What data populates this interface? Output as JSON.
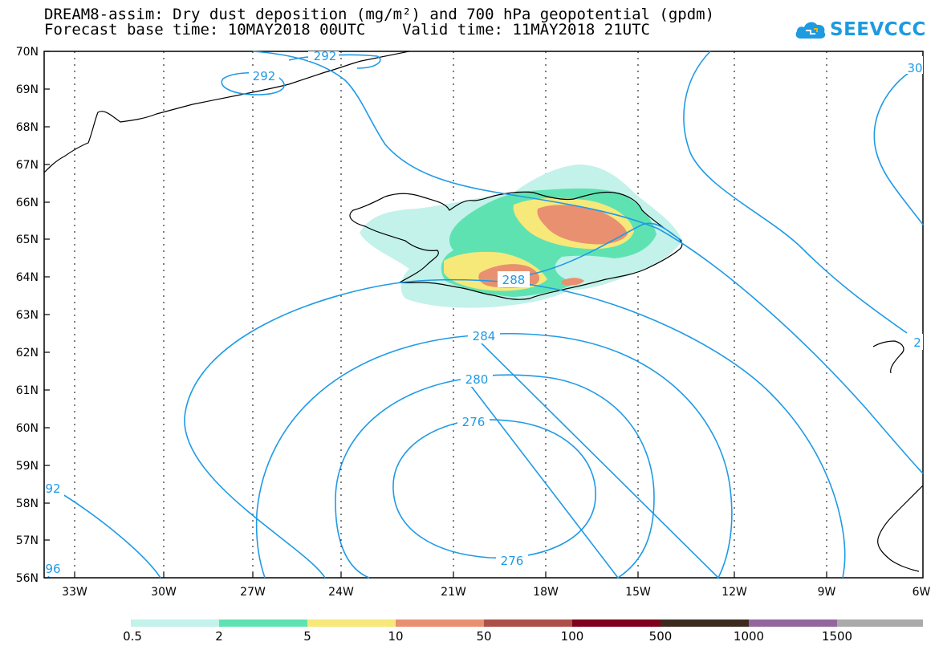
{
  "title": {
    "line1": "DREAM8-assim: Dry dust deposition (mg/m²) and 700 hPa geopotential (gpdm)",
    "line2": "Forecast base time: 10MAY2018 00UTC    Valid time: 11MAY2018 21UTC"
  },
  "logo": {
    "text": "SEEVCCC",
    "icon": "cloud-logo-icon",
    "color": "#1e9ae0"
  },
  "map": {
    "lat_labels": [
      "70N",
      "69N",
      "68N",
      "67N",
      "66N",
      "65N",
      "64N",
      "63N",
      "62N",
      "61N",
      "60N",
      "59N",
      "58N",
      "57N",
      "56N"
    ],
    "lon_labels": [
      "33W",
      "30W",
      "27W",
      "24W",
      "21W",
      "18W",
      "15W",
      "12W",
      "9W",
      "6W"
    ],
    "contour_color": "#1f9ae6",
    "contour_labels": [
      "292",
      "292",
      "30",
      "288",
      "284",
      "280",
      "276",
      "276",
      "92",
      "96",
      "2"
    ]
  },
  "legend": {
    "colors": [
      "#c2f2ea",
      "#5fe2b2",
      "#f7e87a",
      "#e99070",
      "#ad5049",
      "#800020",
      "#3d2a1e",
      "#93679e",
      "#aaaaaa"
    ],
    "labels": [
      "0.5",
      "2",
      "5",
      "10",
      "50",
      "100",
      "500",
      "1000",
      "1500"
    ]
  }
}
